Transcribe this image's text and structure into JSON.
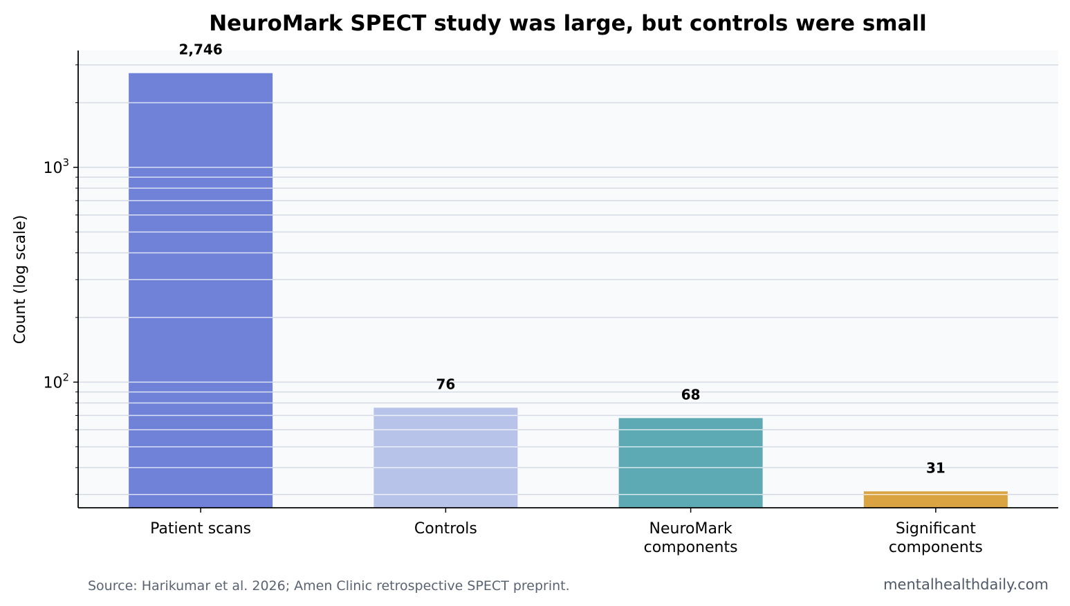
{
  "chart_data": {
    "type": "bar",
    "title": "NeuroMark SPECT study was large, but controls were small",
    "ylabel": "Count (log scale)",
    "xlabel": "",
    "yscale": "log",
    "ylim": [
      26,
      3500
    ],
    "grid": true,
    "categories": [
      [
        "Patient scans"
      ],
      [
        "Controls"
      ],
      [
        "NeuroMark",
        "components"
      ],
      [
        "Significant",
        "components"
      ]
    ],
    "values": [
      2746,
      76,
      68,
      31
    ],
    "value_labels": [
      "2,746",
      "76",
      "68",
      "31"
    ],
    "bar_colors": [
      "#6f82d8",
      "#b8c3ea",
      "#5daab4",
      "#dba443"
    ],
    "y_ticks": [
      {
        "base": "10",
        "exp": "2",
        "value": 100
      },
      {
        "base": "10",
        "exp": "3",
        "value": 1000
      }
    ]
  },
  "footer": {
    "source": "Source: Harikumar et al. 2026; Amen Clinic retrospective SPECT preprint.",
    "brand": "mentalhealthdaily.com"
  },
  "colors": {
    "plot_bg": "#f8fafc",
    "grid": "#d5dbe5",
    "axis": "#000000"
  }
}
